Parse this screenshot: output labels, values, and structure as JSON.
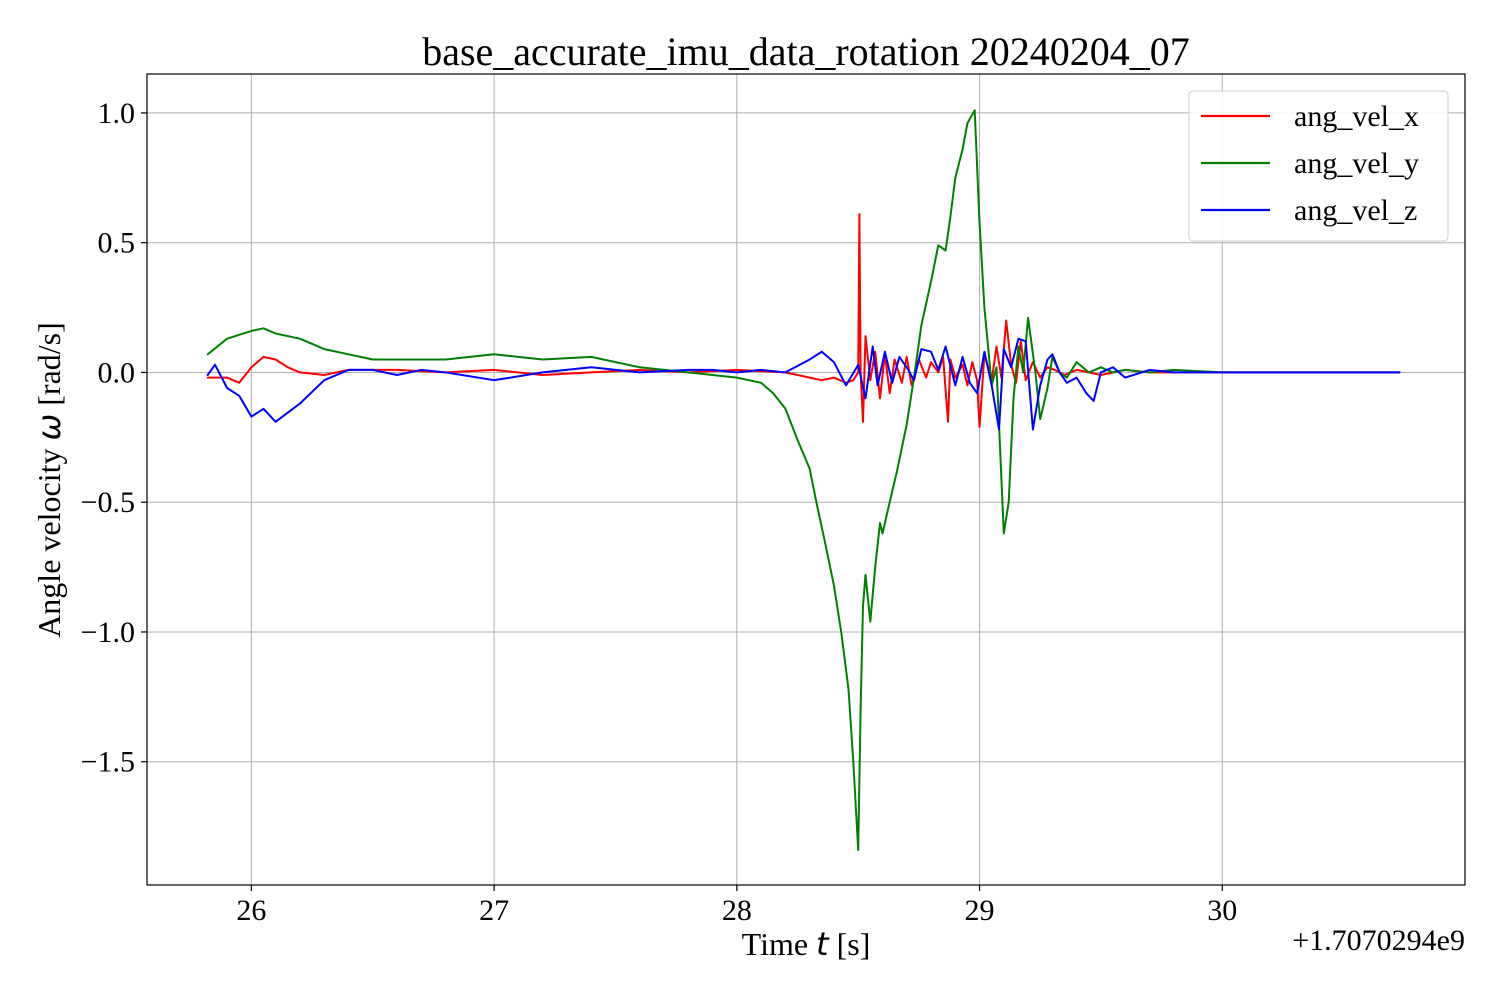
{
  "chart_data": {
    "type": "line",
    "title": "base_accurate_imu_data_rotation 20240204_07",
    "xlabel": {
      "pre": "Time ",
      "symbol": "t",
      "post": " [s]"
    },
    "ylabel": {
      "pre": "Angle velocity ",
      "symbol": "ω",
      "post": " [rad/s]"
    },
    "x_offset_label": "+1.7070294e9",
    "xlim": [
      25.57,
      31.0
    ],
    "ylim": [
      -1.975,
      1.15
    ],
    "xticks": [
      26,
      27,
      28,
      29,
      30
    ],
    "xtick_labels": [
      "26",
      "27",
      "28",
      "29",
      "30"
    ],
    "yticks": [
      1.0,
      0.5,
      0.0,
      -0.5,
      -1.0,
      -1.5
    ],
    "ytick_labels": [
      "1.0",
      "0.5",
      "0.0",
      "−0.5",
      "−1.0",
      "−1.5"
    ],
    "grid": true,
    "legend_position": "upper right",
    "series": [
      {
        "name": "ang_vel_x",
        "color": "#ff0000",
        "x": [
          25.82,
          25.9,
          25.95,
          26.0,
          26.05,
          26.1,
          26.15,
          26.2,
          26.3,
          26.4,
          26.6,
          26.8,
          27.0,
          27.2,
          27.4,
          27.6,
          27.8,
          28.0,
          28.2,
          28.3,
          28.35,
          28.4,
          28.45,
          28.48,
          28.5,
          28.505,
          28.51,
          28.52,
          28.53,
          28.55,
          28.57,
          28.59,
          28.61,
          28.63,
          28.65,
          28.68,
          28.7,
          28.72,
          28.75,
          28.78,
          28.8,
          28.83,
          28.85,
          28.87,
          28.88,
          28.9,
          28.93,
          28.95,
          28.97,
          28.99,
          29.0,
          29.02,
          29.05,
          29.07,
          29.09,
          29.11,
          29.13,
          29.15,
          29.17,
          29.19,
          29.22,
          29.25,
          29.28,
          29.31,
          29.35,
          29.4,
          29.45,
          29.5,
          29.6,
          29.7,
          29.8,
          30.0,
          30.2,
          30.5,
          30.73
        ],
        "y": [
          -0.02,
          -0.02,
          -0.04,
          0.02,
          0.06,
          0.05,
          0.02,
          0.0,
          -0.01,
          0.01,
          0.01,
          0.0,
          0.01,
          -0.01,
          0.0,
          0.01,
          0.0,
          0.01,
          0.0,
          -0.02,
          -0.03,
          -0.02,
          -0.04,
          -0.03,
          0.0,
          0.61,
          0.0,
          -0.19,
          0.14,
          -0.03,
          0.08,
          -0.1,
          0.07,
          -0.08,
          0.05,
          -0.04,
          0.06,
          -0.05,
          0.05,
          -0.02,
          0.04,
          0.0,
          0.06,
          -0.19,
          0.05,
          -0.02,
          0.03,
          -0.05,
          0.04,
          -0.03,
          -0.21,
          0.07,
          -0.03,
          0.1,
          -0.02,
          0.2,
          0.03,
          -0.04,
          0.12,
          -0.03,
          0.04,
          -0.02,
          0.02,
          0.01,
          -0.01,
          0.01,
          0.0,
          -0.01,
          0.01,
          0.0,
          0.0,
          0.0,
          0.0,
          0.0,
          0.0
        ]
      },
      {
        "name": "ang_vel_y",
        "color": "#008000",
        "x": [
          25.82,
          25.9,
          26.0,
          26.05,
          26.1,
          26.2,
          26.3,
          26.4,
          26.5,
          26.6,
          26.8,
          27.0,
          27.2,
          27.4,
          27.6,
          27.8,
          28.0,
          28.1,
          28.15,
          28.2,
          28.25,
          28.3,
          28.33,
          28.36,
          28.4,
          28.43,
          28.46,
          28.48,
          28.5,
          28.51,
          28.52,
          28.53,
          28.55,
          28.57,
          28.59,
          28.6,
          28.63,
          28.66,
          28.7,
          28.73,
          28.76,
          28.8,
          28.83,
          28.86,
          28.88,
          28.9,
          28.93,
          28.95,
          28.98,
          29.0,
          29.02,
          29.05,
          29.07,
          29.1,
          29.12,
          29.14,
          29.16,
          29.18,
          29.2,
          29.23,
          29.25,
          29.28,
          29.3,
          29.33,
          29.36,
          29.4,
          29.45,
          29.5,
          29.55,
          29.6,
          29.7,
          29.8,
          30.0,
          30.2,
          30.5,
          30.73
        ],
        "y": [
          0.07,
          0.13,
          0.16,
          0.17,
          0.15,
          0.13,
          0.09,
          0.07,
          0.05,
          0.05,
          0.05,
          0.07,
          0.05,
          0.06,
          0.02,
          0.0,
          -0.02,
          -0.04,
          -0.08,
          -0.14,
          -0.26,
          -0.37,
          -0.51,
          -0.64,
          -0.82,
          -1.0,
          -1.22,
          -1.5,
          -1.84,
          -1.3,
          -0.9,
          -0.78,
          -0.96,
          -0.75,
          -0.58,
          -0.62,
          -0.5,
          -0.38,
          -0.2,
          -0.02,
          0.18,
          0.35,
          0.49,
          0.47,
          0.6,
          0.75,
          0.86,
          0.96,
          1.01,
          0.58,
          0.25,
          -0.05,
          0.02,
          -0.62,
          -0.5,
          -0.1,
          0.1,
          0.0,
          0.21,
          0.0,
          -0.18,
          -0.06,
          0.06,
          0.0,
          -0.02,
          0.04,
          0.0,
          0.02,
          0.0,
          0.01,
          0.0,
          0.01,
          0.0,
          0.0,
          0.0,
          0.0
        ]
      },
      {
        "name": "ang_vel_z",
        "color": "#0000ff",
        "x": [
          25.82,
          25.85,
          25.9,
          25.95,
          26.0,
          26.05,
          26.1,
          26.2,
          26.3,
          26.4,
          26.5,
          26.6,
          26.7,
          26.8,
          27.0,
          27.2,
          27.4,
          27.6,
          27.8,
          27.9,
          28.0,
          28.1,
          28.2,
          28.3,
          28.35,
          28.4,
          28.45,
          28.5,
          28.53,
          28.56,
          28.58,
          28.61,
          28.64,
          28.67,
          28.7,
          28.73,
          28.76,
          28.8,
          28.83,
          28.86,
          28.9,
          28.93,
          28.96,
          28.99,
          29.02,
          29.05,
          29.08,
          29.1,
          29.13,
          29.16,
          29.19,
          29.22,
          29.25,
          29.28,
          29.3,
          29.33,
          29.36,
          29.4,
          29.44,
          29.47,
          29.5,
          29.55,
          29.6,
          29.7,
          29.8,
          30.0,
          30.2,
          30.5,
          30.73
        ],
        "y": [
          -0.01,
          0.03,
          -0.06,
          -0.09,
          -0.17,
          -0.14,
          -0.19,
          -0.12,
          -0.03,
          0.01,
          0.01,
          -0.01,
          0.01,
          0.0,
          -0.03,
          0.0,
          0.02,
          0.0,
          0.01,
          0.01,
          0.0,
          0.01,
          0.0,
          0.05,
          0.08,
          0.04,
          -0.05,
          0.03,
          -0.1,
          0.1,
          -0.05,
          0.08,
          -0.04,
          0.06,
          0.02,
          -0.03,
          0.09,
          0.08,
          0.01,
          0.1,
          -0.05,
          0.06,
          -0.04,
          -0.08,
          0.08,
          -0.05,
          -0.22,
          0.09,
          0.02,
          0.13,
          0.12,
          -0.22,
          -0.05,
          0.05,
          0.07,
          0.0,
          -0.04,
          -0.02,
          -0.08,
          -0.11,
          0.0,
          0.02,
          -0.02,
          0.01,
          0.0,
          0.0,
          0.0,
          0.0,
          0.0
        ]
      }
    ]
  }
}
